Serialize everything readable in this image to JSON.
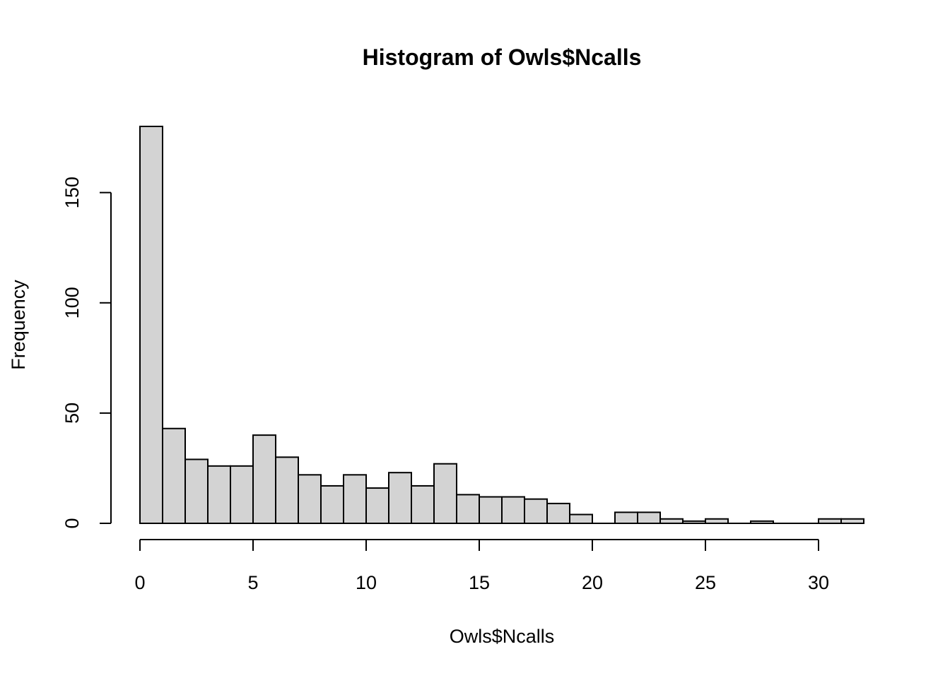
{
  "chart_data": {
    "type": "bar",
    "title": "Histogram of Owls$Ncalls",
    "xlabel": "Owls$Ncalls",
    "ylabel": "Frequency",
    "bin_width": 1,
    "bins": [
      {
        "start": 0,
        "end": 1,
        "count": 180
      },
      {
        "start": 1,
        "end": 2,
        "count": 43
      },
      {
        "start": 2,
        "end": 3,
        "count": 29
      },
      {
        "start": 3,
        "end": 4,
        "count": 26
      },
      {
        "start": 4,
        "end": 5,
        "count": 26
      },
      {
        "start": 5,
        "end": 6,
        "count": 40
      },
      {
        "start": 6,
        "end": 7,
        "count": 30
      },
      {
        "start": 7,
        "end": 8,
        "count": 22
      },
      {
        "start": 8,
        "end": 9,
        "count": 17
      },
      {
        "start": 9,
        "end": 10,
        "count": 22
      },
      {
        "start": 10,
        "end": 11,
        "count": 16
      },
      {
        "start": 11,
        "end": 12,
        "count": 23
      },
      {
        "start": 12,
        "end": 13,
        "count": 17
      },
      {
        "start": 13,
        "end": 14,
        "count": 27
      },
      {
        "start": 14,
        "end": 15,
        "count": 13
      },
      {
        "start": 15,
        "end": 16,
        "count": 12
      },
      {
        "start": 16,
        "end": 17,
        "count": 12
      },
      {
        "start": 17,
        "end": 18,
        "count": 11
      },
      {
        "start": 18,
        "end": 19,
        "count": 9
      },
      {
        "start": 19,
        "end": 20,
        "count": 4
      },
      {
        "start": 20,
        "end": 21,
        "count": 0
      },
      {
        "start": 21,
        "end": 22,
        "count": 5
      },
      {
        "start": 22,
        "end": 23,
        "count": 5
      },
      {
        "start": 23,
        "end": 24,
        "count": 2
      },
      {
        "start": 24,
        "end": 25,
        "count": 1
      },
      {
        "start": 25,
        "end": 26,
        "count": 2
      },
      {
        "start": 26,
        "end": 27,
        "count": 0
      },
      {
        "start": 27,
        "end": 28,
        "count": 1
      },
      {
        "start": 28,
        "end": 29,
        "count": 0
      },
      {
        "start": 29,
        "end": 30,
        "count": 0
      },
      {
        "start": 30,
        "end": 31,
        "count": 2
      },
      {
        "start": 31,
        "end": 32,
        "count": 2
      }
    ],
    "xlim": [
      0,
      32
    ],
    "ylim": [
      0,
      180
    ],
    "x_ticks": [
      0,
      5,
      10,
      15,
      20,
      25,
      30
    ],
    "x_tick_labels": [
      "0",
      "5",
      "10",
      "15",
      "20",
      "25",
      "30"
    ],
    "y_ticks": [
      0,
      50,
      100,
      150
    ],
    "y_tick_labels": [
      "0",
      "50",
      "100",
      "150"
    ],
    "grid": false,
    "legend": "none",
    "colors": {
      "bar_fill": "#d3d3d3",
      "bar_stroke": "#000000",
      "axis": "#000000",
      "background": "#ffffff"
    }
  }
}
